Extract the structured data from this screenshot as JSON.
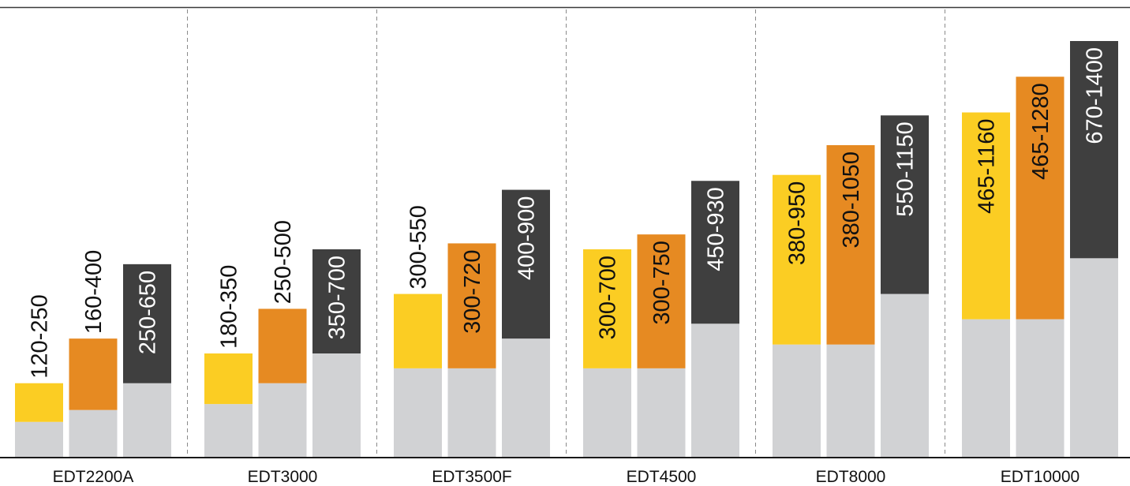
{
  "chart_data": {
    "type": "bar",
    "categories": [
      "EDT2200A",
      "EDT3000",
      "EDT3500F",
      "EDT4500",
      "EDT8000",
      "EDT10000"
    ],
    "series": [
      {
        "color": "#FBCD23",
        "labelColor": "#111111",
        "low": [
          120,
          180,
          300,
          300,
          380,
          465
        ],
        "high": [
          250,
          350,
          550,
          700,
          950,
          1160
        ],
        "labels": [
          "120-250",
          "180-350",
          "300-550",
          "300-700",
          "380-950",
          "465-1160"
        ]
      },
      {
        "color": "#E68A22",
        "labelColor": "#111111",
        "low": [
          160,
          250,
          300,
          300,
          380,
          465
        ],
        "high": [
          400,
          500,
          720,
          750,
          1050,
          1280
        ],
        "labels": [
          "160-400",
          "250-500",
          "300-720",
          "300-750",
          "380-1050",
          "465-1280"
        ]
      },
      {
        "color": "#3F3F3F",
        "labelColor": "#ffffff",
        "low": [
          250,
          350,
          400,
          450,
          550,
          670
        ],
        "high": [
          650,
          700,
          900,
          930,
          1150,
          1400
        ],
        "labels": [
          "250-650",
          "350-700",
          "400-900",
          "450-930",
          "550-1150",
          "670-1400"
        ]
      }
    ],
    "base_color": "#D1D2D4",
    "ylim": [
      0,
      1400
    ],
    "grid": false,
    "group_separators": "dashed"
  }
}
